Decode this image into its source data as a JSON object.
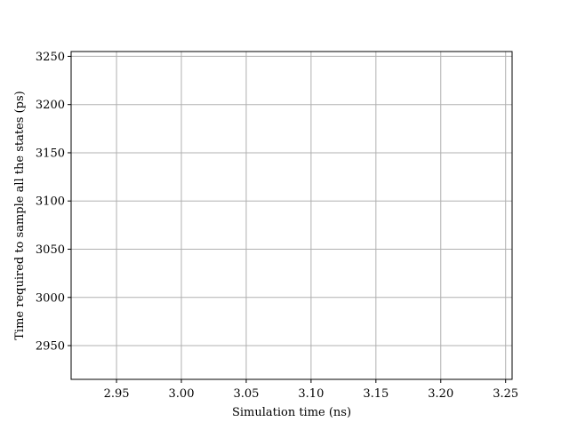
{
  "chart_data": {
    "type": "line",
    "title": "",
    "xlabel": "Simulation time (ns)",
    "ylabel": "Time required to sample all the states (ps)",
    "xlim": [
      2.915,
      3.255
    ],
    "ylim": [
      2915,
      3255
    ],
    "x_ticks": [
      2.95,
      3.0,
      3.05,
      3.1,
      3.15,
      3.2,
      3.25
    ],
    "x_tick_labels": [
      "2.95",
      "3.00",
      "3.05",
      "3.10",
      "3.15",
      "3.20",
      "3.25"
    ],
    "y_ticks": [
      2950,
      3000,
      3050,
      3100,
      3150,
      3200,
      3250
    ],
    "y_tick_labels": [
      "2950",
      "3000",
      "3050",
      "3100",
      "3150",
      "3200",
      "3250"
    ],
    "grid": true,
    "series": [],
    "colors": {
      "axis": "#000000",
      "grid": "#b0b0b0",
      "background": "#ffffff"
    }
  }
}
